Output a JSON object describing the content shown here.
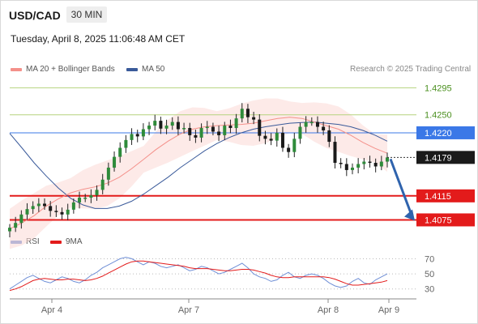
{
  "header": {
    "pair": "USD/CAD",
    "timeframe": "30 MIN",
    "datetime": "Tuesday, April 8, 2025 11:06:48 AM CET"
  },
  "legend": {
    "bollinger_label": "MA 20 + Bollinger Bands",
    "ma50_label": "MA 50",
    "rsi_label": "RSI",
    "ma9_label": "9MA"
  },
  "credit": "Research © 2025 Trading Central",
  "colors": {
    "bollinger": "#f4908a",
    "bollinger_band_fill": "#fbd9d6",
    "ma50": "#3a5a9a",
    "candle": "#2e8b3a",
    "resistance_line": "#3b78e7",
    "support_line": "#e31b1b",
    "minor_resistance": "#b5d37e",
    "arrow": "#2f63ad",
    "rsi": "#6f8fd6",
    "rsi_ma9": "#e31b1b"
  },
  "chart_data": [
    {
      "type": "line",
      "subtype": "candlestick price chart",
      "x_ticks": [
        "Apr 4",
        "Apr 7",
        "Apr 8",
        "Apr 9"
      ],
      "ylim": [
        1.405,
        1.4313
      ],
      "last_price": "1.4179",
      "levels": [
        {
          "value": "1.4295",
          "kind": "resistance-minor"
        },
        {
          "value": "1.4250",
          "kind": "resistance-minor"
        },
        {
          "value": "1.4220",
          "kind": "resistance"
        },
        {
          "value": "1.4115",
          "kind": "support"
        },
        {
          "value": "1.4075",
          "kind": "support"
        }
      ],
      "series": [
        {
          "name": "MA 20 + Bollinger Bands",
          "values": [
            1.406,
            1.407,
            1.4082,
            1.4098,
            1.411,
            1.412,
            1.4126,
            1.413,
            1.4136,
            1.4146,
            1.416,
            1.4176,
            1.4192,
            1.4206,
            1.4218,
            1.4226,
            1.423,
            1.4232,
            1.4233,
            1.4234,
            1.4236,
            1.424,
            1.4244,
            1.4246,
            1.4244,
            1.4238,
            1.4232,
            1.4226,
            1.4216,
            1.4204,
            1.4194,
            1.4186
          ]
        },
        {
          "name": "MA 50",
          "values": [
            1.4219,
            1.4195,
            1.417,
            1.4148,
            1.4128,
            1.4111,
            1.41,
            1.4094,
            1.4094,
            1.4098,
            1.4106,
            1.4118,
            1.4132,
            1.4146,
            1.4162,
            1.4176,
            1.419,
            1.4202,
            1.4212,
            1.422,
            1.4226,
            1.423,
            1.4233,
            1.4236,
            1.4237,
            1.4238,
            1.4236,
            1.4234,
            1.423,
            1.4224,
            1.4216,
            1.4206
          ]
        }
      ],
      "candle_closes": [
        1.4062,
        1.407,
        1.4084,
        1.4093,
        1.4098,
        1.4102,
        1.4098,
        1.409,
        1.4088,
        1.4084,
        1.4092,
        1.4104,
        1.4112,
        1.4112,
        1.4116,
        1.4125,
        1.4142,
        1.4162,
        1.418,
        1.4195,
        1.4208,
        1.4218,
        1.4214,
        1.4226,
        1.4232,
        1.424,
        1.4227,
        1.4232,
        1.4238,
        1.4226,
        1.4228,
        1.4216,
        1.4212,
        1.4228,
        1.423,
        1.4222,
        1.4216,
        1.4232,
        1.4228,
        1.4244,
        1.426,
        1.4246,
        1.4242,
        1.4215,
        1.421,
        1.4207,
        1.422,
        1.4195,
        1.4188,
        1.421,
        1.423,
        1.4238,
        1.4238,
        1.423,
        1.4224,
        1.4205,
        1.417,
        1.4168,
        1.4158,
        1.4162,
        1.4168,
        1.4172,
        1.417,
        1.4164,
        1.4172,
        1.4179
      ]
    },
    {
      "type": "line",
      "subtype": "RSI",
      "y_ticks": [
        70,
        50,
        30
      ],
      "ylim": [
        20,
        78
      ],
      "series": [
        {
          "name": "RSI",
          "values": [
            30,
            35,
            40,
            45,
            48,
            44,
            40,
            38,
            42,
            46,
            44,
            40,
            38,
            42,
            48,
            52,
            58,
            62,
            66,
            70,
            72,
            70,
            66,
            62,
            66,
            64,
            60,
            58,
            60,
            62,
            58,
            54,
            56,
            60,
            58,
            54,
            50,
            52,
            56,
            60,
            64,
            58,
            50,
            46,
            44,
            40,
            42,
            48,
            52,
            46,
            44,
            48,
            50,
            48,
            44,
            38,
            34,
            32,
            34,
            40,
            44,
            38,
            36,
            42,
            46,
            50
          ]
        },
        {
          "name": "9MA",
          "values": [
            28,
            30,
            33,
            37,
            41,
            43,
            44,
            43,
            42,
            42,
            43,
            43,
            42,
            41,
            42,
            44,
            47,
            51,
            55,
            59,
            63,
            66,
            67,
            67,
            66,
            65,
            64,
            63,
            62,
            61,
            60,
            58,
            57,
            57,
            57,
            56,
            55,
            54,
            54,
            55,
            56,
            56,
            55,
            53,
            51,
            48,
            46,
            45,
            45,
            46,
            46,
            46,
            46,
            46,
            46,
            45,
            43,
            40,
            37,
            35,
            35,
            36,
            37,
            38,
            39,
            41
          ]
        }
      ]
    }
  ]
}
